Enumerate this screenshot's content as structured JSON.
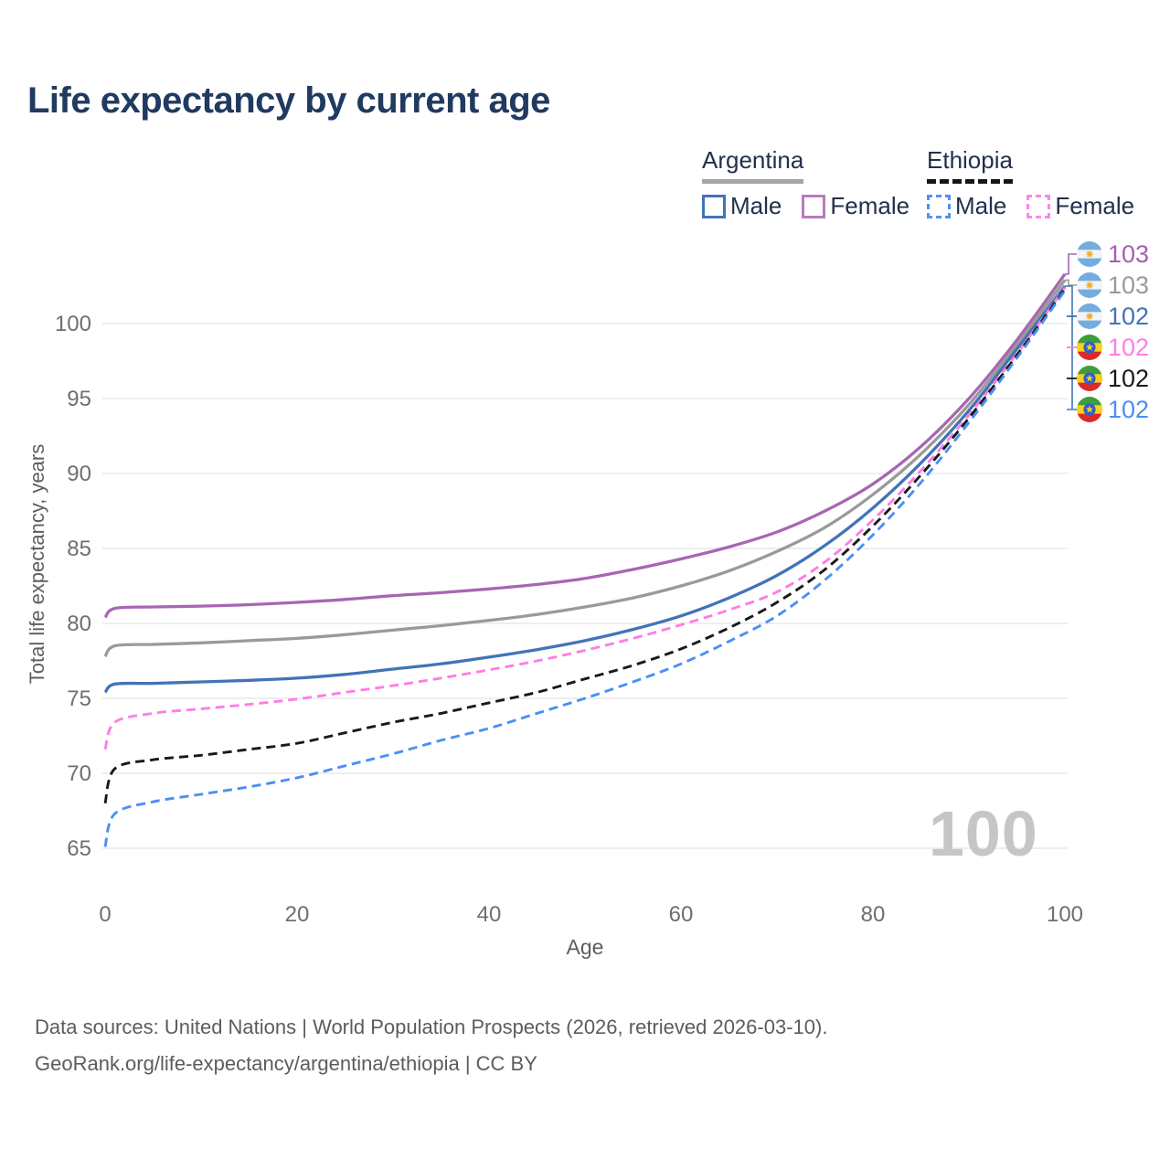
{
  "title": "Life expectancy by current age",
  "watermark_age": "100",
  "legend": {
    "groups": [
      {
        "country": "Argentina",
        "underline_style": "solid",
        "underline_color": "#a5a5a5",
        "items": [
          {
            "label": "Male",
            "color": "#4273b8",
            "dashed": false
          },
          {
            "label": "Female",
            "color": "#b77cbb",
            "dashed": false
          }
        ]
      },
      {
        "country": "Ethiopia",
        "underline_style": "dashed",
        "underline_color": "#161616",
        "items": [
          {
            "label": "Male",
            "color": "#4d93f7",
            "dashed": true
          },
          {
            "label": "Female",
            "color": "#ff85e8",
            "dashed": true
          }
        ]
      }
    ]
  },
  "chart_data": {
    "type": "line",
    "title": "Life expectancy by current age",
    "xlabel": "Age",
    "ylabel": "Total life expectancy, years",
    "xlim": [
      0,
      100
    ],
    "ylim": [
      65,
      100
    ],
    "x_ticks": [
      0,
      20,
      40,
      60,
      80,
      100
    ],
    "y_ticks": [
      65,
      70,
      75,
      80,
      85,
      90,
      95,
      100
    ],
    "grid": "horizontal-only",
    "legend_position": "top-right",
    "series": [
      {
        "name": "Argentina Female",
        "country": "Argentina",
        "sex": "Female",
        "color": "#a766b2",
        "dashed": false,
        "end_label": "103",
        "points": [
          [
            0,
            80.4
          ],
          [
            1,
            81.0
          ],
          [
            5,
            81.1
          ],
          [
            10,
            81.15
          ],
          [
            15,
            81.25
          ],
          [
            20,
            81.4
          ],
          [
            25,
            81.6
          ],
          [
            30,
            81.85
          ],
          [
            35,
            82.05
          ],
          [
            40,
            82.3
          ],
          [
            45,
            82.6
          ],
          [
            50,
            83.0
          ],
          [
            55,
            83.6
          ],
          [
            60,
            84.3
          ],
          [
            65,
            85.1
          ],
          [
            70,
            86.1
          ],
          [
            75,
            87.5
          ],
          [
            80,
            89.3
          ],
          [
            85,
            91.8
          ],
          [
            90,
            95.0
          ],
          [
            95,
            98.9
          ],
          [
            100,
            103.3
          ]
        ]
      },
      {
        "name": "Argentina",
        "country": "Argentina",
        "sex": "Both",
        "color": "#9a9a9a",
        "dashed": false,
        "end_label": "103",
        "points": [
          [
            0,
            77.8
          ],
          [
            1,
            78.5
          ],
          [
            5,
            78.6
          ],
          [
            10,
            78.7
          ],
          [
            15,
            78.85
          ],
          [
            20,
            79.0
          ],
          [
            25,
            79.25
          ],
          [
            30,
            79.55
          ],
          [
            35,
            79.85
          ],
          [
            40,
            80.2
          ],
          [
            45,
            80.6
          ],
          [
            50,
            81.1
          ],
          [
            55,
            81.7
          ],
          [
            60,
            82.5
          ],
          [
            65,
            83.5
          ],
          [
            70,
            84.8
          ],
          [
            75,
            86.4
          ],
          [
            80,
            88.6
          ],
          [
            85,
            91.3
          ],
          [
            90,
            94.6
          ],
          [
            95,
            98.6
          ],
          [
            100,
            102.9
          ]
        ]
      },
      {
        "name": "Argentina Male",
        "country": "Argentina",
        "sex": "Male",
        "color": "#4273b8",
        "dashed": false,
        "end_label": "102",
        "points": [
          [
            0,
            75.4
          ],
          [
            1,
            75.95
          ],
          [
            5,
            76.0
          ],
          [
            10,
            76.1
          ],
          [
            15,
            76.2
          ],
          [
            20,
            76.35
          ],
          [
            25,
            76.6
          ],
          [
            30,
            76.95
          ],
          [
            35,
            77.3
          ],
          [
            40,
            77.75
          ],
          [
            45,
            78.25
          ],
          [
            50,
            78.85
          ],
          [
            55,
            79.6
          ],
          [
            60,
            80.5
          ],
          [
            65,
            81.7
          ],
          [
            70,
            83.2
          ],
          [
            75,
            85.2
          ],
          [
            80,
            87.7
          ],
          [
            85,
            90.7
          ],
          [
            90,
            94.2
          ],
          [
            95,
            98.3
          ],
          [
            100,
            102.5
          ]
        ]
      },
      {
        "name": "Ethiopia Female",
        "country": "Ethiopia",
        "sex": "Female",
        "color": "#ff7de3",
        "dashed": true,
        "end_label": "102",
        "points": [
          [
            0,
            71.6
          ],
          [
            1,
            73.4
          ],
          [
            5,
            74.0
          ],
          [
            10,
            74.3
          ],
          [
            15,
            74.6
          ],
          [
            20,
            74.95
          ],
          [
            25,
            75.4
          ],
          [
            30,
            75.85
          ],
          [
            35,
            76.35
          ],
          [
            40,
            76.9
          ],
          [
            45,
            77.5
          ],
          [
            50,
            78.2
          ],
          [
            55,
            79.0
          ],
          [
            60,
            79.9
          ],
          [
            65,
            80.9
          ],
          [
            70,
            82.1
          ],
          [
            75,
            84.1
          ],
          [
            80,
            86.9
          ],
          [
            85,
            90.2
          ],
          [
            90,
            93.9
          ],
          [
            95,
            98.0
          ],
          [
            100,
            102.4
          ]
        ]
      },
      {
        "name": "Ethiopia",
        "country": "Ethiopia",
        "sex": "Both",
        "color": "#191919",
        "dashed": true,
        "end_label": "102",
        "points": [
          [
            0,
            68.0
          ],
          [
            1,
            70.3
          ],
          [
            5,
            70.9
          ],
          [
            10,
            71.2
          ],
          [
            15,
            71.6
          ],
          [
            20,
            72.0
          ],
          [
            25,
            72.7
          ],
          [
            30,
            73.4
          ],
          [
            35,
            74.0
          ],
          [
            40,
            74.7
          ],
          [
            45,
            75.4
          ],
          [
            50,
            76.3
          ],
          [
            55,
            77.2
          ],
          [
            60,
            78.3
          ],
          [
            65,
            79.7
          ],
          [
            70,
            81.4
          ],
          [
            75,
            83.6
          ],
          [
            80,
            86.5
          ],
          [
            85,
            89.9
          ],
          [
            90,
            93.7
          ],
          [
            95,
            97.9
          ],
          [
            100,
            102.3
          ]
        ]
      },
      {
        "name": "Ethiopia Male",
        "country": "Ethiopia",
        "sex": "Male",
        "color": "#4a8ff5",
        "dashed": true,
        "end_label": "102",
        "points": [
          [
            0,
            65.1
          ],
          [
            1,
            67.3
          ],
          [
            5,
            68.1
          ],
          [
            10,
            68.6
          ],
          [
            15,
            69.1
          ],
          [
            20,
            69.7
          ],
          [
            25,
            70.5
          ],
          [
            30,
            71.3
          ],
          [
            35,
            72.2
          ],
          [
            40,
            73.0
          ],
          [
            45,
            74.0
          ],
          [
            50,
            75.0
          ],
          [
            55,
            76.1
          ],
          [
            60,
            77.3
          ],
          [
            65,
            78.8
          ],
          [
            70,
            80.5
          ],
          [
            75,
            82.9
          ],
          [
            80,
            85.9
          ],
          [
            85,
            89.4
          ],
          [
            90,
            93.4
          ],
          [
            95,
            97.7
          ],
          [
            100,
            102.2
          ]
        ]
      }
    ]
  },
  "end_labels": [
    {
      "flag": "argentina",
      "value": "103",
      "color": "#a85cb2"
    },
    {
      "flag": "argentina",
      "value": "103",
      "color": "#9a9a9a"
    },
    {
      "flag": "argentina",
      "value": "102",
      "color": "#4273b8"
    },
    {
      "flag": "ethiopia",
      "value": "102",
      "color": "#ff7de3"
    },
    {
      "flag": "ethiopia",
      "value": "102",
      "color": "#1a1a1a"
    },
    {
      "flag": "ethiopia",
      "value": "102",
      "color": "#4a8ff5"
    }
  ],
  "footer": {
    "line1": "Data sources: United Nations | World Population Prospects (2026, retrieved 2026-03-10).",
    "line2": "GeoRank.org/life-expectancy/argentina/ethiopia | CC BY"
  }
}
